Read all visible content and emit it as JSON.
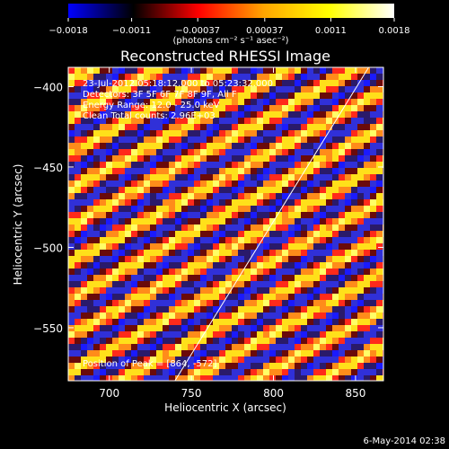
{
  "chart_data": {
    "type": "heatmap",
    "title": "Reconstructed RHESSI Image",
    "xlabel": "Heliocentric X (arcsec)",
    "ylabel": "Heliocentric Y (arcsec)",
    "xlim": [
      675,
      867
    ],
    "ylim": [
      -583,
      -388
    ],
    "xticks": [
      700,
      750,
      800,
      850
    ],
    "xtick_labels": [
      "700",
      "750",
      "800",
      "850"
    ],
    "yticks": [
      -550,
      -500,
      -450,
      -400
    ],
    "ytick_labels": [
      "−550",
      "−500",
      "−450",
      "−400"
    ],
    "colorbar": {
      "range": [
        -0.0018,
        0.0018
      ],
      "ticks": [
        -0.0018,
        -0.0011,
        -0.00037,
        0.00037,
        0.0011,
        0.0018
      ],
      "tick_labels": [
        "−0.0018",
        "−0.0011",
        "−0.00037",
        "0.00037",
        "0.0011",
        "0.0018"
      ],
      "units_label": "(photons cm⁻² s⁻¹ asec⁻²)",
      "colors": [
        "#0000ff",
        "#000000",
        "#ff0000",
        "#ffa500",
        "#ffff00",
        "#ffffff"
      ]
    },
    "annotations": [
      "23-Jul-2012 05:18:12.000 to 05:23:32.000",
      "Detectors: 3F 5F 6F 7F 8F 9F, All F",
      "Energy Range: 12.0 - 25.0 keV",
      "Clean   Total counts: 2.96E+03",
      "Position of Peak = [864, -572]"
    ],
    "limb_line": {
      "x": [
        740,
        858
      ],
      "y": [
        -583,
        -388
      ]
    },
    "pattern": "diagonal fringe stripes"
  },
  "footer": {
    "date": "6-May-2014 02:38"
  }
}
